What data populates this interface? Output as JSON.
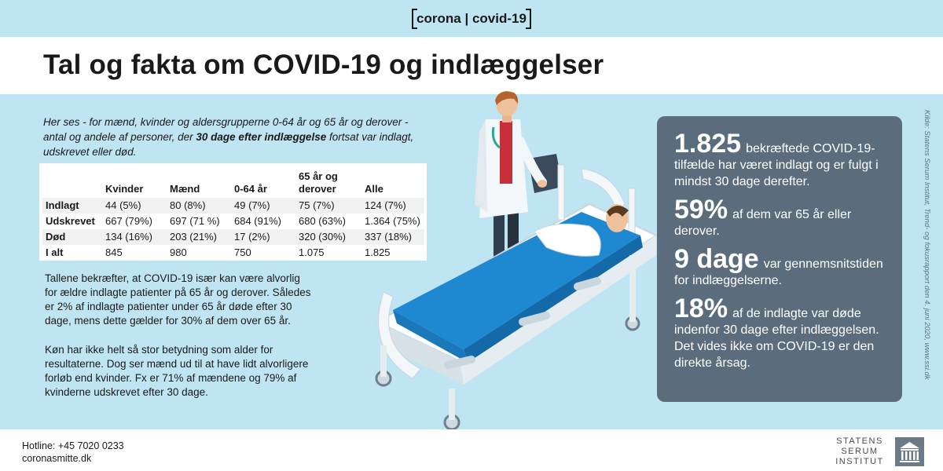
{
  "header": {
    "brand_left": "corona",
    "brand_sep": "|",
    "brand_right": "covid-19",
    "title": "Tal og fakta om COVID-19 og indlæggelser"
  },
  "intro": {
    "text_before": "Her ses - for mænd, kvinder og aldersgrupperne 0-64 år og 65 år og derover - antal og andele af personer, der ",
    "text_bold": "30 dage efter indlæggelse",
    "text_after": " fortsat var indlagt, udskrevet eller død."
  },
  "table": {
    "headers": [
      "",
      "Kvinder",
      "Mænd",
      "0-64 år",
      "65 år og derover",
      "Alle"
    ],
    "rows": [
      [
        "Indlagt",
        "44 (5%)",
        "80 (8%)",
        "49 (7%)",
        "75 (7%)",
        "124 (7%)"
      ],
      [
        "Udskrevet",
        "667 (79%)",
        "697 (71 %)",
        "684 (91%)",
        "680 (63%)",
        "1.364 (75%)"
      ],
      [
        "Død",
        "134 (16%)",
        "203 (21%)",
        "17 (2%)",
        "320 (30%)",
        "337 (18%)"
      ],
      [
        "I alt",
        "845",
        "980",
        "750",
        "1.075",
        "1.825"
      ]
    ]
  },
  "body": {
    "p1": "Tallene bekræfter, at COVID-19 især kan være alvorlig for ældre indlagte patienter på 65 år og derover. Således er 2% af indlagte patienter under 65 år døde efter 30 dage, mens dette gælder for 30% af dem over 65 år.",
    "p2": "Køn har ikke helt så stor betydning som alder for resultaterne. Dog ser mænd ud til at have lidt alvorligere forløb end kvinder. Fx er 71% af mændene og 79% af kvinderne udskrevet efter 30 dage."
  },
  "stats": [
    {
      "big": "1.825",
      "text": "bekræftede COVID-19-tilfælde har været indlagt og er fulgt i mindst 30 dage derefter."
    },
    {
      "big": "59%",
      "text": "af dem var 65 år eller derover."
    },
    {
      "big": "9 dage",
      "text": "var gennemsnitstiden for indlæggelserne."
    },
    {
      "big": "18%",
      "text": "af de indlagte var døde indenfor 30 dage efter indlæggelsen. Det vides ikke om COVID-19 er den direkte årsag."
    }
  ],
  "source": "Kilde: Statens Serum Institut, Trend- og fokusrapport den 4. juni 2020, www.ssi.dk",
  "footer": {
    "hotline": "Hotline: +45 7020 0233",
    "website": "coronasmitte.dk",
    "logo_line1": "STATENS",
    "logo_line2": "SERUM",
    "logo_line3": "INSTITUT"
  },
  "colors": {
    "background": "#bfe4f2",
    "card": "#5b6c7c",
    "blanket": "#1e88d0"
  },
  "illustration": {
    "icon": "doctor-and-hospital-bed-illustration"
  }
}
